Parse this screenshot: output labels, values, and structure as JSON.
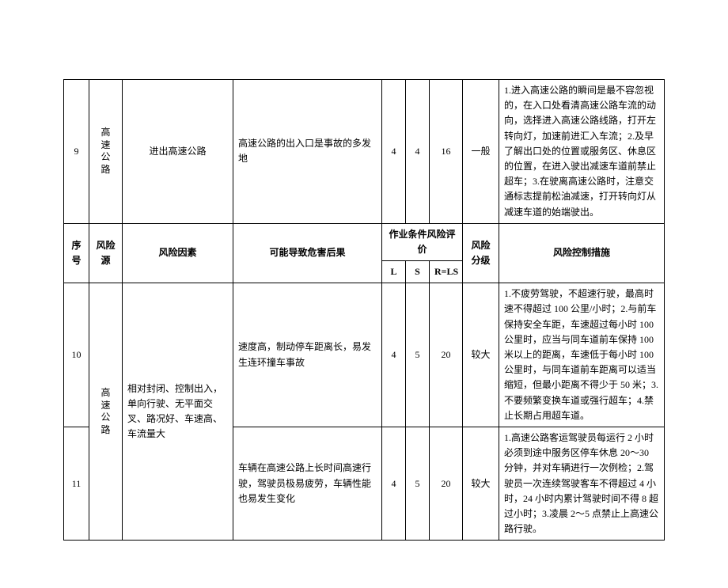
{
  "headers": {
    "seq": "序号",
    "source": "风险源",
    "factor": "风险因素",
    "consequence": "可能导致危害后果",
    "evaluation": "作业条件风险评价",
    "L": "L",
    "S": "S",
    "R": "R=LS",
    "level": "风险分级",
    "measures": "风险控制措施"
  },
  "source_label": "高速公路",
  "rows": {
    "r9": {
      "seq": "9",
      "factor": "进出高速公路",
      "consequence": "高速公路的出入口是事故的多发地",
      "L": "4",
      "S": "4",
      "R": "16",
      "level": "一般",
      "measures": "1.进入高速公路的瞬间是最不容忽视的，在入口处看清高速公路车流的动向，选择进入高速公路线路，打开左转向灯，加速前进汇入车流；2.及早了解出口处的位置或服务区、休息区的位置，在进入驶出减速车道前禁止超车；3.在驶离高速公路时，注意交通标志提前松油减速，打开转向灯从减速车道的始端驶出。"
    },
    "r10": {
      "seq": "10",
      "factor": "相对封闭、控制出入，单向行驶、无平面交叉、路况好、车速高、车流量大",
      "consequence": "速度高，制动停车距离长，易发生连环撞车事故",
      "L": "4",
      "S": "5",
      "R": "20",
      "level": "较大",
      "measures": "1.不疲劳驾驶，不超速行驶，最高时速不得超过 100 公里/小时；2.与前车保持安全车距，车速超过每小时 100 公里时，应当与同车道前车保持 100 米以上的距离，车速低于每小时 100 公里时，与同车道前车距离可以适当缩短，但最小距离不得少于 50 米；3.不要频繁变换车道或强行超车；4.禁止长期占用超车道。"
    },
    "r11": {
      "seq": "11",
      "consequence": "车辆在高速公路上长时间高速行驶，驾驶员极易疲劳，车辆性能也易发生变化",
      "L": "4",
      "S": "5",
      "R": "20",
      "level": "较大",
      "measures": "1.高速公路客运驾驶员每运行 2 小时必须到途中服务区停车休息 20～30 分钟，并对车辆进行一次例检；2.驾驶员一次连续驾驶客车不得超过 4 小时，24 小时内累计驾驶时间不得 8 超过小时；3.凌晨 2～5 点禁止上高速公路行驶。"
    }
  },
  "style": {
    "border_color": "#000000",
    "background_color": "#ffffff",
    "text_color": "#000000",
    "font_size_body": 12,
    "font_family": "SimSun"
  }
}
